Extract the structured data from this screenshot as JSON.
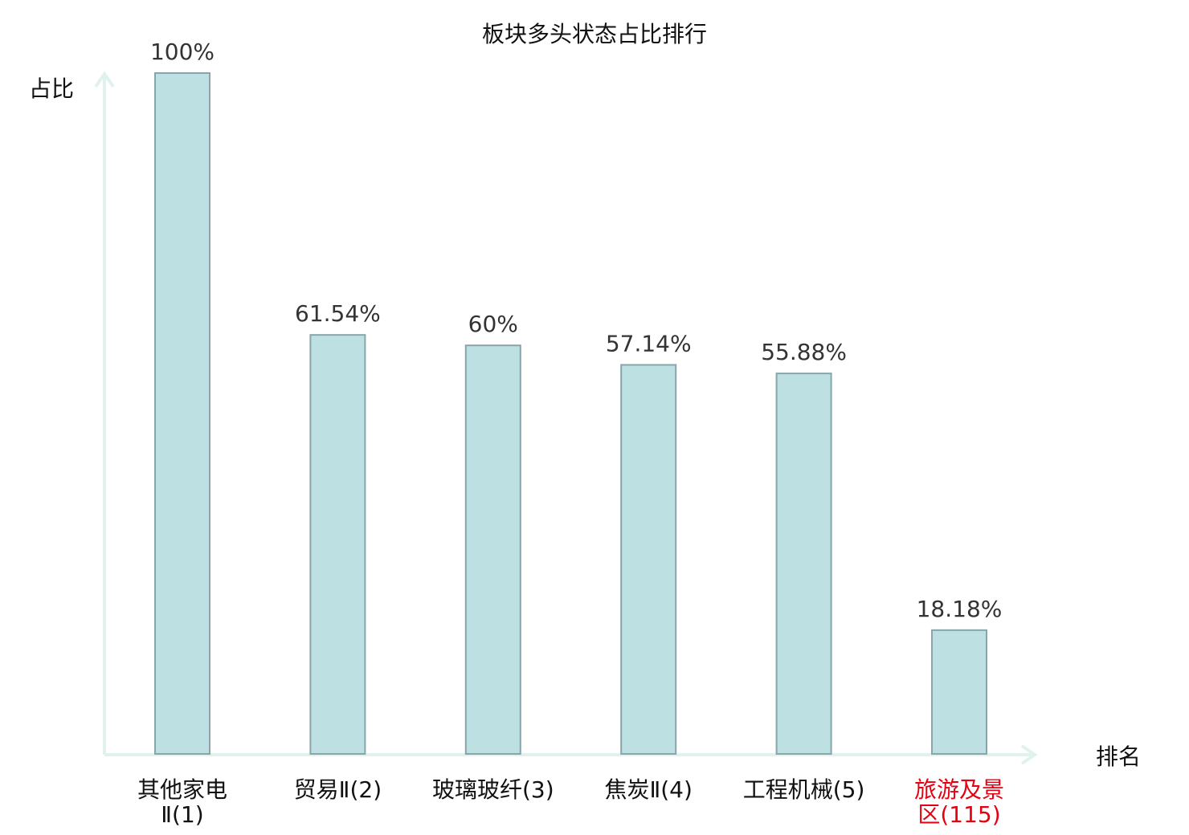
{
  "chart_data": {
    "type": "bar",
    "title": "板块多头状态占比排行",
    "ylabel": "占比",
    "xlabel": "排名",
    "ylim": [
      0,
      100
    ],
    "grid": false,
    "categories": [
      {
        "lines": [
          "其他家电",
          "Ⅱ(1)"
        ],
        "highlight": false
      },
      {
        "lines": [
          "贸易Ⅱ(2)"
        ],
        "highlight": false
      },
      {
        "lines": [
          "玻璃玻纤(3)"
        ],
        "highlight": false
      },
      {
        "lines": [
          "焦炭Ⅱ(4)"
        ],
        "highlight": false
      },
      {
        "lines": [
          "工程机械(5)"
        ],
        "highlight": false
      },
      {
        "lines": [
          "旅游及景",
          "区(115)"
        ],
        "highlight": true
      }
    ],
    "values": [
      100,
      61.54,
      60,
      57.14,
      55.88,
      18.18
    ],
    "value_labels": [
      "100%",
      "61.54%",
      "60%",
      "57.14%",
      "55.88%",
      "18.18%"
    ],
    "colors": {
      "bar_fill": "#bde0e3",
      "bar_stroke": "#88a5aa",
      "axis": "#e0f1ee",
      "highlight_label": "#e60012"
    }
  }
}
